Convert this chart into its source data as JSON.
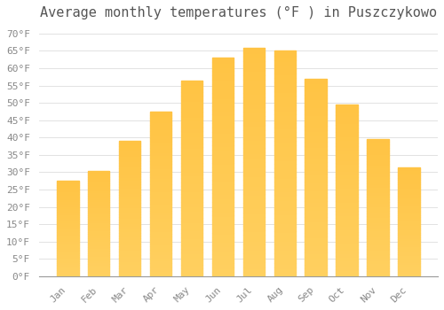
{
  "title": "Average monthly temperatures (°F ) in Puszczykowo",
  "months": [
    "Jan",
    "Feb",
    "Mar",
    "Apr",
    "May",
    "Jun",
    "Jul",
    "Aug",
    "Sep",
    "Oct",
    "Nov",
    "Dec"
  ],
  "values": [
    27.5,
    30.5,
    39.0,
    47.5,
    56.5,
    63.0,
    66.0,
    65.0,
    57.0,
    49.5,
    39.5,
    31.5
  ],
  "bar_color_top": "#FFA500",
  "bar_color_bottom": "#FFD060",
  "bar_edge_color": "#E89000",
  "background_color": "#FFFFFF",
  "grid_color": "#DDDDDD",
  "ylim": [
    0,
    72
  ],
  "ytick_min": 0,
  "ytick_max": 70,
  "ytick_step": 5,
  "title_fontsize": 11,
  "tick_fontsize": 8,
  "font_family": "monospace",
  "title_color": "#555555",
  "tick_color": "#888888"
}
